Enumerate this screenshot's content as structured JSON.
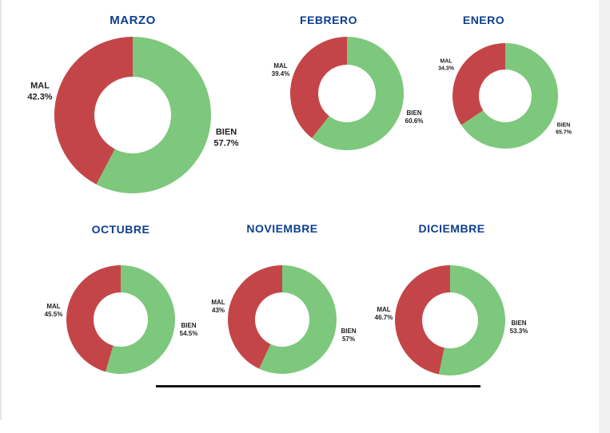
{
  "colors": {
    "bien": "#7dc87c",
    "mal": "#c44548",
    "title": "#0d3f8f",
    "background": "#ffffff"
  },
  "chart_data": [
    {
      "type": "pie",
      "title": "MARZO",
      "categories": [
        "MAL",
        "BIEN"
      ],
      "values": [
        42.3,
        57.7
      ],
      "value_labels": [
        "42.3%",
        "57.7%"
      ]
    },
    {
      "type": "pie",
      "title": "FEBRERO",
      "categories": [
        "MAL",
        "BIEN"
      ],
      "values": [
        39.4,
        60.6
      ],
      "value_labels": [
        "39.4%",
        "60.6%"
      ]
    },
    {
      "type": "pie",
      "title": "ENERO",
      "categories": [
        "MAL",
        "BIEN"
      ],
      "values": [
        34.3,
        65.7
      ],
      "value_labels": [
        "34.3%",
        "65.7%"
      ]
    },
    {
      "type": "pie",
      "title": "OCTUBRE",
      "categories": [
        "MAL",
        "BIEN"
      ],
      "values": [
        45.5,
        54.5
      ],
      "value_labels": [
        "45.5%",
        "54.5%"
      ]
    },
    {
      "type": "pie",
      "title": "NOVIEMBRE",
      "categories": [
        "MAL",
        "BIEN"
      ],
      "values": [
        43,
        57
      ],
      "value_labels": [
        "43%",
        "57%"
      ]
    },
    {
      "type": "pie",
      "title": "DICIEMBRE",
      "categories": [
        "MAL",
        "BIEN"
      ],
      "values": [
        46.7,
        53.3
      ],
      "value_labels": [
        "46.7%",
        "53.3%"
      ]
    }
  ]
}
